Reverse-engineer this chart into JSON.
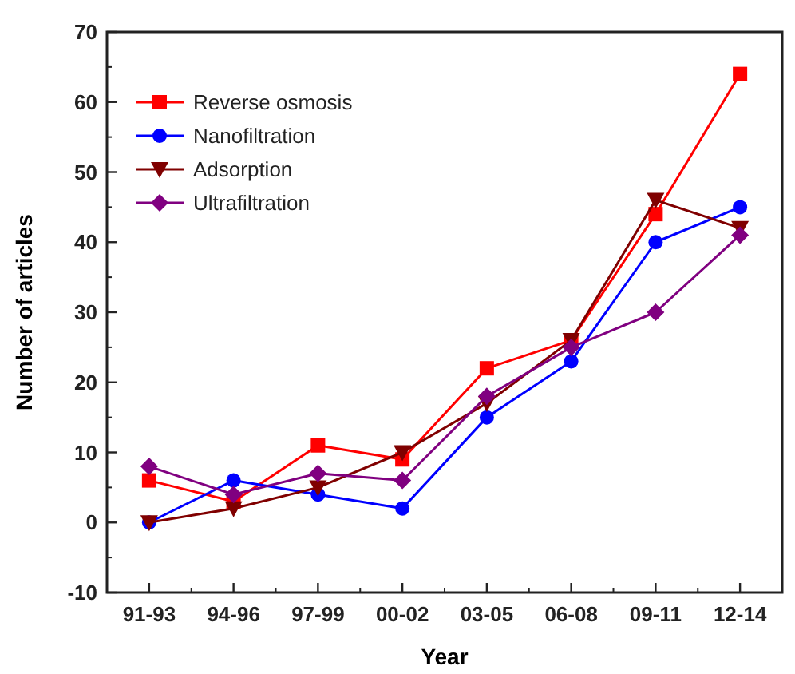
{
  "chart_data": {
    "type": "line",
    "xlabel": "Year",
    "ylabel": "Number of articles",
    "categories": [
      "91-93",
      "94-96",
      "97-99",
      "00-02",
      "03-05",
      "06-08",
      "09-11",
      "12-14"
    ],
    "series": [
      {
        "name": "Reverse osmosis",
        "color": "#ff0000",
        "marker": "square",
        "values": [
          6,
          3,
          11,
          9,
          22,
          26,
          44,
          64
        ]
      },
      {
        "name": "Nanofiltration",
        "color": "#0000ff",
        "marker": "circle",
        "values": [
          0,
          6,
          4,
          2,
          15,
          23,
          40,
          45
        ]
      },
      {
        "name": "Adsorption",
        "color": "#800000",
        "marker": "triangle",
        "values": [
          0,
          2,
          5,
          10,
          17,
          26,
          46,
          42
        ]
      },
      {
        "name": "Ultrafiltration",
        "color": "#800080",
        "marker": "diamond",
        "values": [
          8,
          4,
          7,
          6,
          18,
          25,
          30,
          41
        ]
      }
    ],
    "ylim": [
      -10,
      70
    ],
    "yticks": [
      -10,
      0,
      10,
      20,
      30,
      40,
      50,
      60,
      70
    ],
    "grid": false,
    "legend": "top left"
  }
}
